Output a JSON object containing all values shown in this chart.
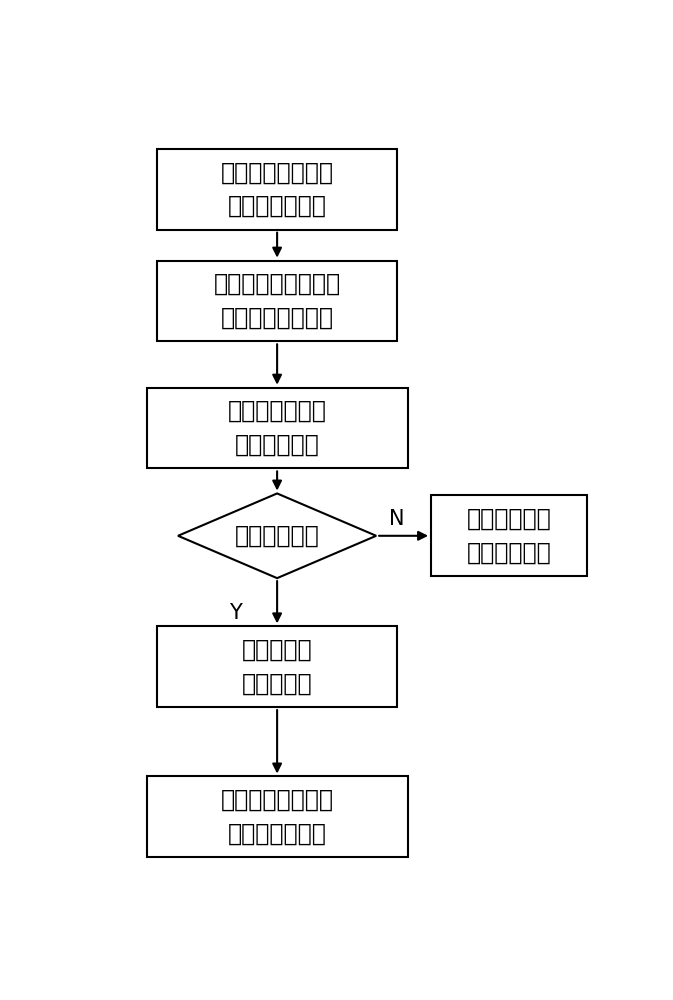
{
  "bg_color": "#ffffff",
  "box_edge_color": "#000000",
  "text_color": "#000000",
  "font_size": 17,
  "label_font_size": 15,
  "box1_text": "连接待测电池的封\n印区域和负极耳",
  "box2_text": "将待测锂离子电池放\n入高温条件下搁置",
  "box3_text": "观察封印区域是\n否出现腐蚀点",
  "diamond_text": "出现腐蚀点？",
  "box4_text": "观察出现的\n腐蚀点情况",
  "box5_text": "判断待测锂离子电\n池的内腐蚀情况",
  "boxr_text": "检测下一个待\n测锂离子电池",
  "label_y": "Y",
  "label_n": "N",
  "lw": 1.5,
  "arrow_mutation_scale": 14
}
